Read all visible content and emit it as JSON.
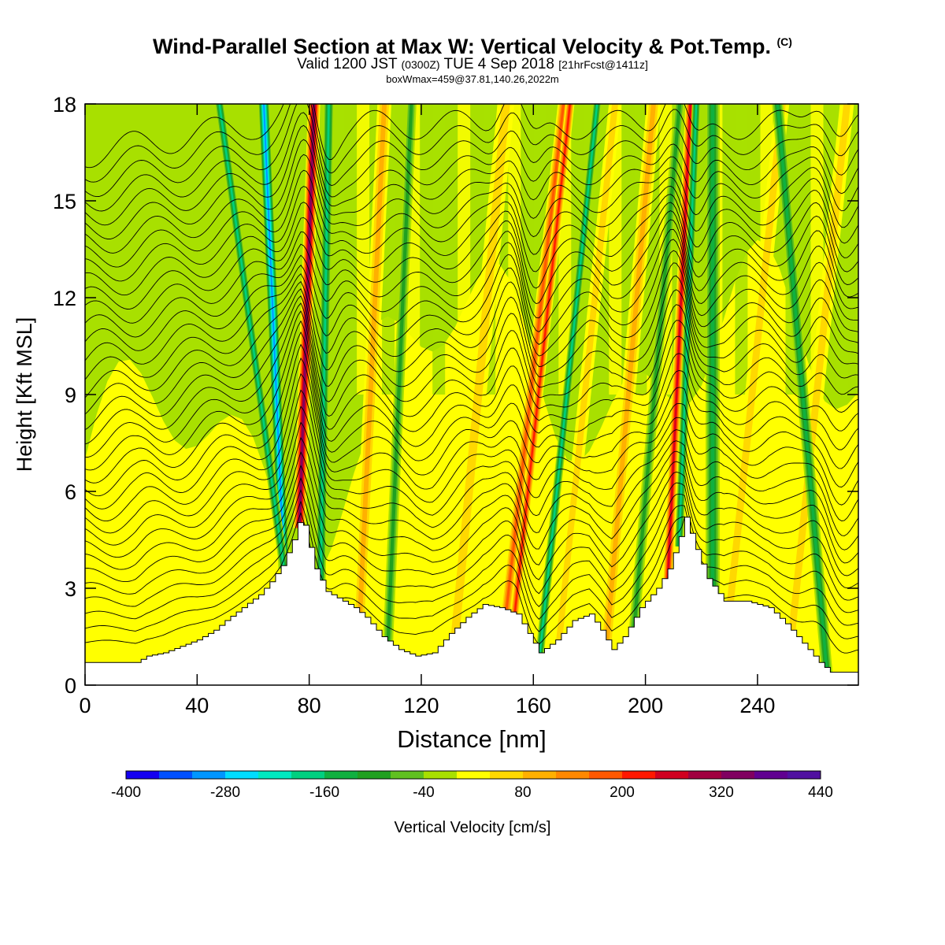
{
  "titles": {
    "main": "Wind-Parallel Section at Max W: Vertical Velocity & Pot.Temp.",
    "copyright_mark": "(C)",
    "valid_prefix": "Valid 1200 JST",
    "utc": "(0300Z)",
    "valid_date": "TUE 4 Sep 2018",
    "forecast": "[21hrFcst@1411z]",
    "box_info": "boxWmax=459@37.81,140.26,2022m"
  },
  "chart_data": {
    "type": "heatmap",
    "xlabel": "Distance [nm]",
    "ylabel": "Height [Kft MSL]",
    "xlim": [
      0,
      276
    ],
    "ylim": [
      0,
      18
    ],
    "x_ticks": [
      0,
      40,
      80,
      120,
      160,
      200,
      240
    ],
    "y_ticks": [
      0,
      3,
      6,
      9,
      12,
      15,
      18
    ],
    "colorbar": {
      "label": "Vertical Velocity [cm/s]",
      "min": -400,
      "max": 440,
      "step": 40,
      "tick_labels": [
        -400,
        -280,
        -160,
        -40,
        80,
        200,
        320,
        440
      ],
      "colors": [
        "#1400f0",
        "#0050ff",
        "#0096ff",
        "#00dcff",
        "#00e8c0",
        "#00d080",
        "#10b040",
        "#20a020",
        "#60c020",
        "#a8e000",
        "#ffff00",
        "#ffd800",
        "#ffb000",
        "#ff8800",
        "#ff5800",
        "#ff1800",
        "#d00020",
        "#a00040",
        "#800060",
        "#600090",
        "#5010a0"
      ]
    },
    "background_value": -40,
    "terrain_kft": [
      [
        0,
        0.7
      ],
      [
        18,
        0.7
      ],
      [
        22,
        0.9
      ],
      [
        28,
        1.0
      ],
      [
        34,
        1.2
      ],
      [
        40,
        1.4
      ],
      [
        46,
        1.7
      ],
      [
        50,
        2.0
      ],
      [
        56,
        2.4
      ],
      [
        62,
        2.8
      ],
      [
        66,
        3.2
      ],
      [
        70,
        3.7
      ],
      [
        74,
        4.5
      ],
      [
        77,
        5.3
      ],
      [
        79,
        4.6
      ],
      [
        82,
        3.6
      ],
      [
        86,
        2.9
      ],
      [
        92,
        2.6
      ],
      [
        96,
        2.4
      ],
      [
        100,
        2.1
      ],
      [
        106,
        1.5
      ],
      [
        112,
        1.1
      ],
      [
        118,
        0.9
      ],
      [
        124,
        1.0
      ],
      [
        130,
        1.6
      ],
      [
        136,
        2.1
      ],
      [
        142,
        2.5
      ],
      [
        148,
        2.4
      ],
      [
        154,
        2.2
      ],
      [
        158,
        1.6
      ],
      [
        162,
        1.0
      ],
      [
        168,
        1.4
      ],
      [
        174,
        2.0
      ],
      [
        180,
        2.2
      ],
      [
        184,
        1.7
      ],
      [
        188,
        1.1
      ],
      [
        192,
        1.5
      ],
      [
        198,
        2.4
      ],
      [
        204,
        3.0
      ],
      [
        208,
        3.6
      ],
      [
        212,
        4.6
      ],
      [
        214,
        5.2
      ],
      [
        218,
        4.2
      ],
      [
        222,
        3.3
      ],
      [
        228,
        2.6
      ],
      [
        236,
        2.6
      ],
      [
        244,
        2.4
      ],
      [
        250,
        1.9
      ],
      [
        256,
        1.3
      ],
      [
        262,
        0.7
      ],
      [
        266,
        0.4
      ],
      [
        276,
        0.4
      ]
    ],
    "updrafts": [
      {
        "x0": 76.5,
        "dxdz": 0.4,
        "value": 340,
        "width": 2.2
      },
      {
        "x0": 98,
        "dxdz": 0.55,
        "value": 100,
        "width": 2.5
      },
      {
        "x0": 132,
        "dxdz": 1.1,
        "value": 80,
        "width": 3.0
      },
      {
        "x0": 150,
        "dxdz": 1.3,
        "value": 180,
        "width": 2.0
      },
      {
        "x0": 153,
        "dxdz": 1.25,
        "value": 230,
        "width": 1.6
      },
      {
        "x0": 169,
        "dxdz": 1.2,
        "value": 90,
        "width": 2.2
      },
      {
        "x0": 208,
        "dxdz": 0.55,
        "value": 260,
        "width": 1.8
      },
      {
        "x0": 186,
        "dxdz": 1.0,
        "value": 100,
        "width": 2.5
      },
      {
        "x0": 230,
        "dxdz": 1.2,
        "value": 80,
        "width": 2.5
      },
      {
        "x0": 252,
        "dxdz": 1.2,
        "value": 70,
        "width": 2.5
      }
    ],
    "downdrafts": [
      {
        "x0": 71,
        "dxdz": -0.5,
        "value": -300,
        "width": 2.0
      },
      {
        "x0": 71,
        "dxdz": -1.6,
        "value": -180,
        "width": 1.6
      },
      {
        "x0": 84,
        "dxdz": 0.2,
        "value": -200,
        "width": 1.8
      },
      {
        "x0": 162,
        "dxdz": 1.2,
        "value": -180,
        "width": 1.5
      },
      {
        "x0": 212,
        "dxdz": 0.45,
        "value": -200,
        "width": 1.5
      },
      {
        "x0": 224,
        "dxdz": 0.0,
        "value": -140,
        "width": 2.5
      },
      {
        "x0": 108,
        "dxdz": 0.5,
        "value": -120,
        "width": 1.8
      },
      {
        "x0": 196,
        "dxdz": 1.0,
        "value": -120,
        "width": 1.8
      },
      {
        "x0": 265,
        "dxdz": -1.0,
        "value": -140,
        "width": 2.0
      }
    ],
    "isentropes": {
      "count": 36,
      "base_kft": 0.9,
      "spacing_kft": 0.47,
      "wave_centers_nm": [
        78,
        152,
        210,
        262
      ],
      "wave_amplitudes_kft": [
        1.4,
        1.2,
        1.3,
        0.9
      ]
    }
  }
}
